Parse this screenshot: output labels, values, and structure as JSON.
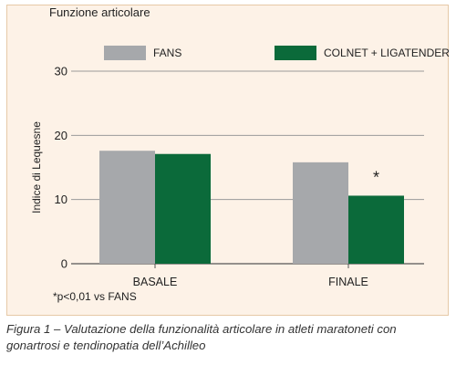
{
  "panel_title": "Funzione articolare",
  "footnote": "*p<0,01 vs FANS",
  "caption": "Figura 1 – Valutazione della funzionalità articolare in atleti maratoneti con gonartrosi e tendinopatia dell’Achilleo",
  "colors": {
    "fans": "#a6a8ab",
    "colnet": "#0b6a3a",
    "gridline": "#9a9a9a",
    "panel_bg": "#fdf2e7"
  },
  "chart_data": {
    "type": "bar",
    "title": "Funzione articolare",
    "ylabel": "Indice di Lequesne",
    "xlabel": "",
    "categories": [
      "BASALE",
      "FINALE"
    ],
    "series": [
      {
        "name": "FANS",
        "values": [
          17.6,
          15.8
        ]
      },
      {
        "name": "COLNET + LIGATENDER",
        "values": [
          17.1,
          10.6
        ]
      }
    ],
    "ylim": [
      0,
      30
    ],
    "yticks": [
      "0",
      "10",
      "20",
      "30"
    ],
    "ytick_values": [
      0,
      10,
      20,
      30
    ],
    "grid": true,
    "legend_position": "top",
    "annotations": [
      {
        "category": "FINALE",
        "series": "COLNET + LIGATENDER",
        "text": "*"
      }
    ]
  }
}
